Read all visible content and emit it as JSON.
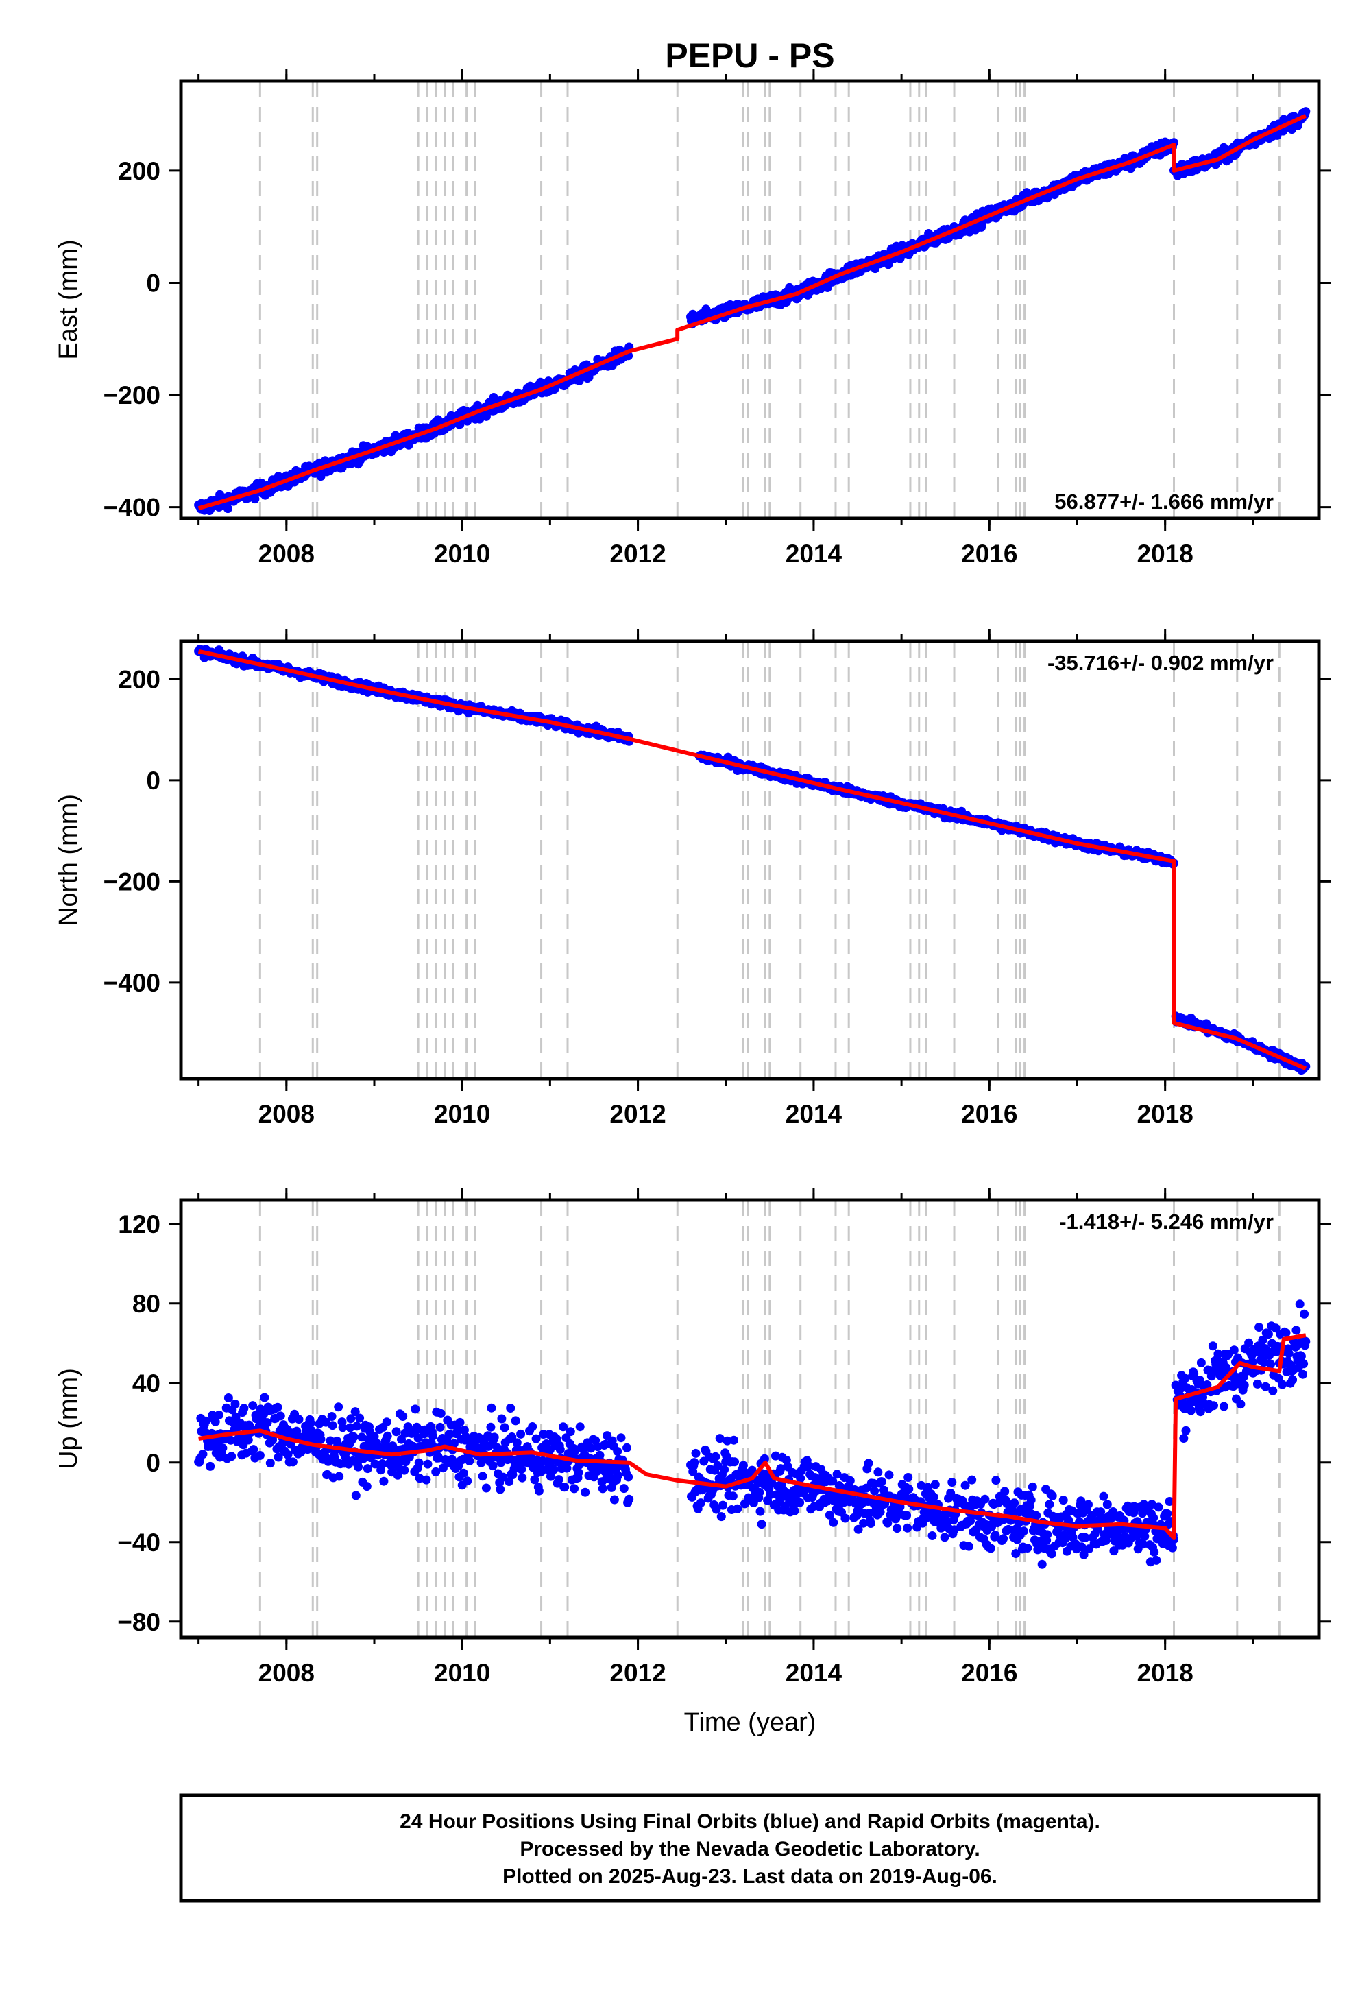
{
  "title": "PEPU - PS",
  "footer": {
    "lines": [
      "24 Hour Positions Using Final Orbits (blue) and Rapid Orbits (magenta).",
      "Processed by the Nevada Geodetic Laboratory.",
      "Plotted on 2025-Aug-23. Last data on 2019-Aug-06."
    ]
  },
  "colors": {
    "data": "#0000ff",
    "model": "#ff0000",
    "event_lines": "#c8c8c8",
    "frame": "#000000"
  },
  "chart_data": [
    {
      "type": "scatter",
      "name": "east",
      "ylabel": "East (mm)",
      "xlabel": "",
      "xlim": [
        2006.8,
        2019.75
      ],
      "ylim": [
        -420,
        360
      ],
      "yticks": [
        -400,
        -200,
        0,
        200
      ],
      "ytick_labels": [
        "−400",
        "−200",
        "0",
        "200"
      ],
      "rate_label": "56.877+/- 1.666 mm/yr",
      "rate_position": "bottom-right",
      "data_segments": [
        {
          "x": [
            2007.0,
            2007.7,
            2008.3,
            2009.0,
            2009.7,
            2010.2,
            2010.9,
            2011.4,
            2011.9
          ],
          "y": [
            -402,
            -370,
            -335,
            -298,
            -260,
            -228,
            -190,
            -160,
            -122
          ]
        },
        {
          "x": [
            2012.6,
            2013.2,
            2013.8,
            2014.3,
            2015.0,
            2015.7,
            2016.3,
            2017.0,
            2017.6,
            2018.1
          ],
          "y": [
            -68,
            -45,
            -20,
            15,
            55,
            100,
            140,
            185,
            215,
            248
          ]
        },
        {
          "x": [
            2018.1,
            2018.6,
            2019.0,
            2019.6
          ],
          "y": [
            198,
            220,
            255,
            298
          ]
        }
      ],
      "model": {
        "x": [
          2007.0,
          2007.7,
          2008.3,
          2009.0,
          2009.7,
          2010.2,
          2010.9,
          2011.9,
          2012.45,
          2012.45,
          2013.2,
          2013.8,
          2014.3,
          2015.0,
          2015.7,
          2016.3,
          2017.0,
          2017.6,
          2018.1,
          2018.1,
          2018.6,
          2019.0,
          2019.6
        ],
        "y": [
          -402,
          -370,
          -335,
          -298,
          -260,
          -228,
          -190,
          -122,
          -100,
          -84,
          -45,
          -20,
          15,
          55,
          100,
          140,
          185,
          215,
          246,
          200,
          220,
          255,
          298
        ]
      },
      "noise": 6
    },
    {
      "type": "scatter",
      "name": "north",
      "ylabel": "North (mm)",
      "xlabel": "",
      "xlim": [
        2006.8,
        2019.75
      ],
      "ylim": [
        -590,
        275
      ],
      "yticks": [
        -400,
        -200,
        0,
        200
      ],
      "ytick_labels": [
        "−400",
        "−200",
        "0",
        "200"
      ],
      "rate_label": "-35.716+/- 0.902 mm/yr",
      "rate_position": "top-right",
      "data_segments": [
        {
          "x": [
            2007.0,
            2008.0,
            2009.0,
            2010.0,
            2011.0,
            2011.9
          ],
          "y": [
            255,
            218,
            180,
            145,
            115,
            82
          ]
        },
        {
          "x": [
            2012.7,
            2013.5,
            2014.3,
            2015.0,
            2016.0,
            2017.0,
            2018.1
          ],
          "y": [
            48,
            15,
            -18,
            -45,
            -85,
            -125,
            -160
          ]
        },
        {
          "x": [
            2018.12,
            2018.8,
            2019.6
          ],
          "y": [
            -470,
            -510,
            -570
          ]
        }
      ],
      "model": {
        "x": [
          2007.0,
          2008.0,
          2009.0,
          2010.0,
          2011.0,
          2011.9,
          2012.7,
          2013.5,
          2014.3,
          2015.0,
          2016.0,
          2017.0,
          2018.1,
          2018.1,
          2018.8,
          2019.6
        ],
        "y": [
          255,
          218,
          180,
          145,
          115,
          82,
          48,
          15,
          -18,
          -45,
          -85,
          -125,
          -160,
          -480,
          -510,
          -570
        ]
      },
      "noise": 4
    },
    {
      "type": "scatter",
      "name": "up",
      "ylabel": "Up (mm)",
      "xlabel": "Time (year)",
      "xlim": [
        2006.8,
        2019.75
      ],
      "ylim": [
        -88,
        132
      ],
      "yticks": [
        -80,
        -40,
        0,
        40,
        80,
        120
      ],
      "ytick_labels": [
        "−80",
        "−40",
        "0",
        "40",
        "80",
        "120"
      ],
      "rate_label": "-1.418+/- 5.246 mm/yr",
      "rate_position": "top-right",
      "data_segments": [
        {
          "x": [
            2007.0,
            2007.7,
            2008.3,
            2009.0,
            2009.7,
            2010.5,
            2011.2,
            2011.9
          ],
          "y": [
            12,
            18,
            10,
            6,
            8,
            4,
            2,
            -2
          ]
        },
        {
          "x": [
            2012.6,
            2013.2,
            2013.8,
            2014.5,
            2015.2,
            2016.0,
            2016.8,
            2017.5,
            2018.1
          ],
          "y": [
            -8,
            -10,
            -10,
            -18,
            -22,
            -28,
            -32,
            -30,
            -35
          ]
        },
        {
          "x": [
            2018.12,
            2018.6,
            2019.0,
            2019.6
          ],
          "y": [
            32,
            42,
            50,
            62
          ]
        }
      ],
      "model": {
        "x": [
          2007.0,
          2007.3,
          2007.7,
          2008.0,
          2008.3,
          2008.8,
          2009.2,
          2009.6,
          2009.8,
          2010.2,
          2010.8,
          2011.3,
          2011.9,
          2012.1,
          2012.45,
          2013.0,
          2013.3,
          2013.45,
          2013.55,
          2014.0,
          2014.5,
          2015.0,
          2015.6,
          2016.2,
          2016.6,
          2017.0,
          2017.5,
          2018.0,
          2018.1,
          2018.12,
          2018.6,
          2018.85,
          2019.0,
          2019.3,
          2019.35,
          2019.6
        ],
        "y": [
          12,
          14,
          16,
          12,
          9,
          6,
          4,
          6,
          8,
          4,
          5,
          1,
          0,
          -6,
          -9,
          -12,
          -8,
          0,
          -8,
          -12,
          -16,
          -20,
          -24,
          -27,
          -30,
          -32,
          -31,
          -33,
          -38,
          32,
          38,
          50,
          48,
          46,
          62,
          64
        ]
      },
      "noise": 8
    }
  ],
  "event_lines_years": [
    2007.7,
    2008.3,
    2008.35,
    2009.5,
    2009.6,
    2009.7,
    2009.8,
    2009.9,
    2010.05,
    2010.15,
    2010.9,
    2011.2,
    2012.45,
    2013.2,
    2013.25,
    2013.45,
    2013.5,
    2013.85,
    2014.25,
    2014.4,
    2015.1,
    2015.2,
    2015.28,
    2015.6,
    2016.1,
    2016.3,
    2016.35,
    2016.4,
    2018.1,
    2018.82,
    2019.3
  ],
  "xticks": [
    2008,
    2010,
    2012,
    2014,
    2016,
    2018
  ]
}
